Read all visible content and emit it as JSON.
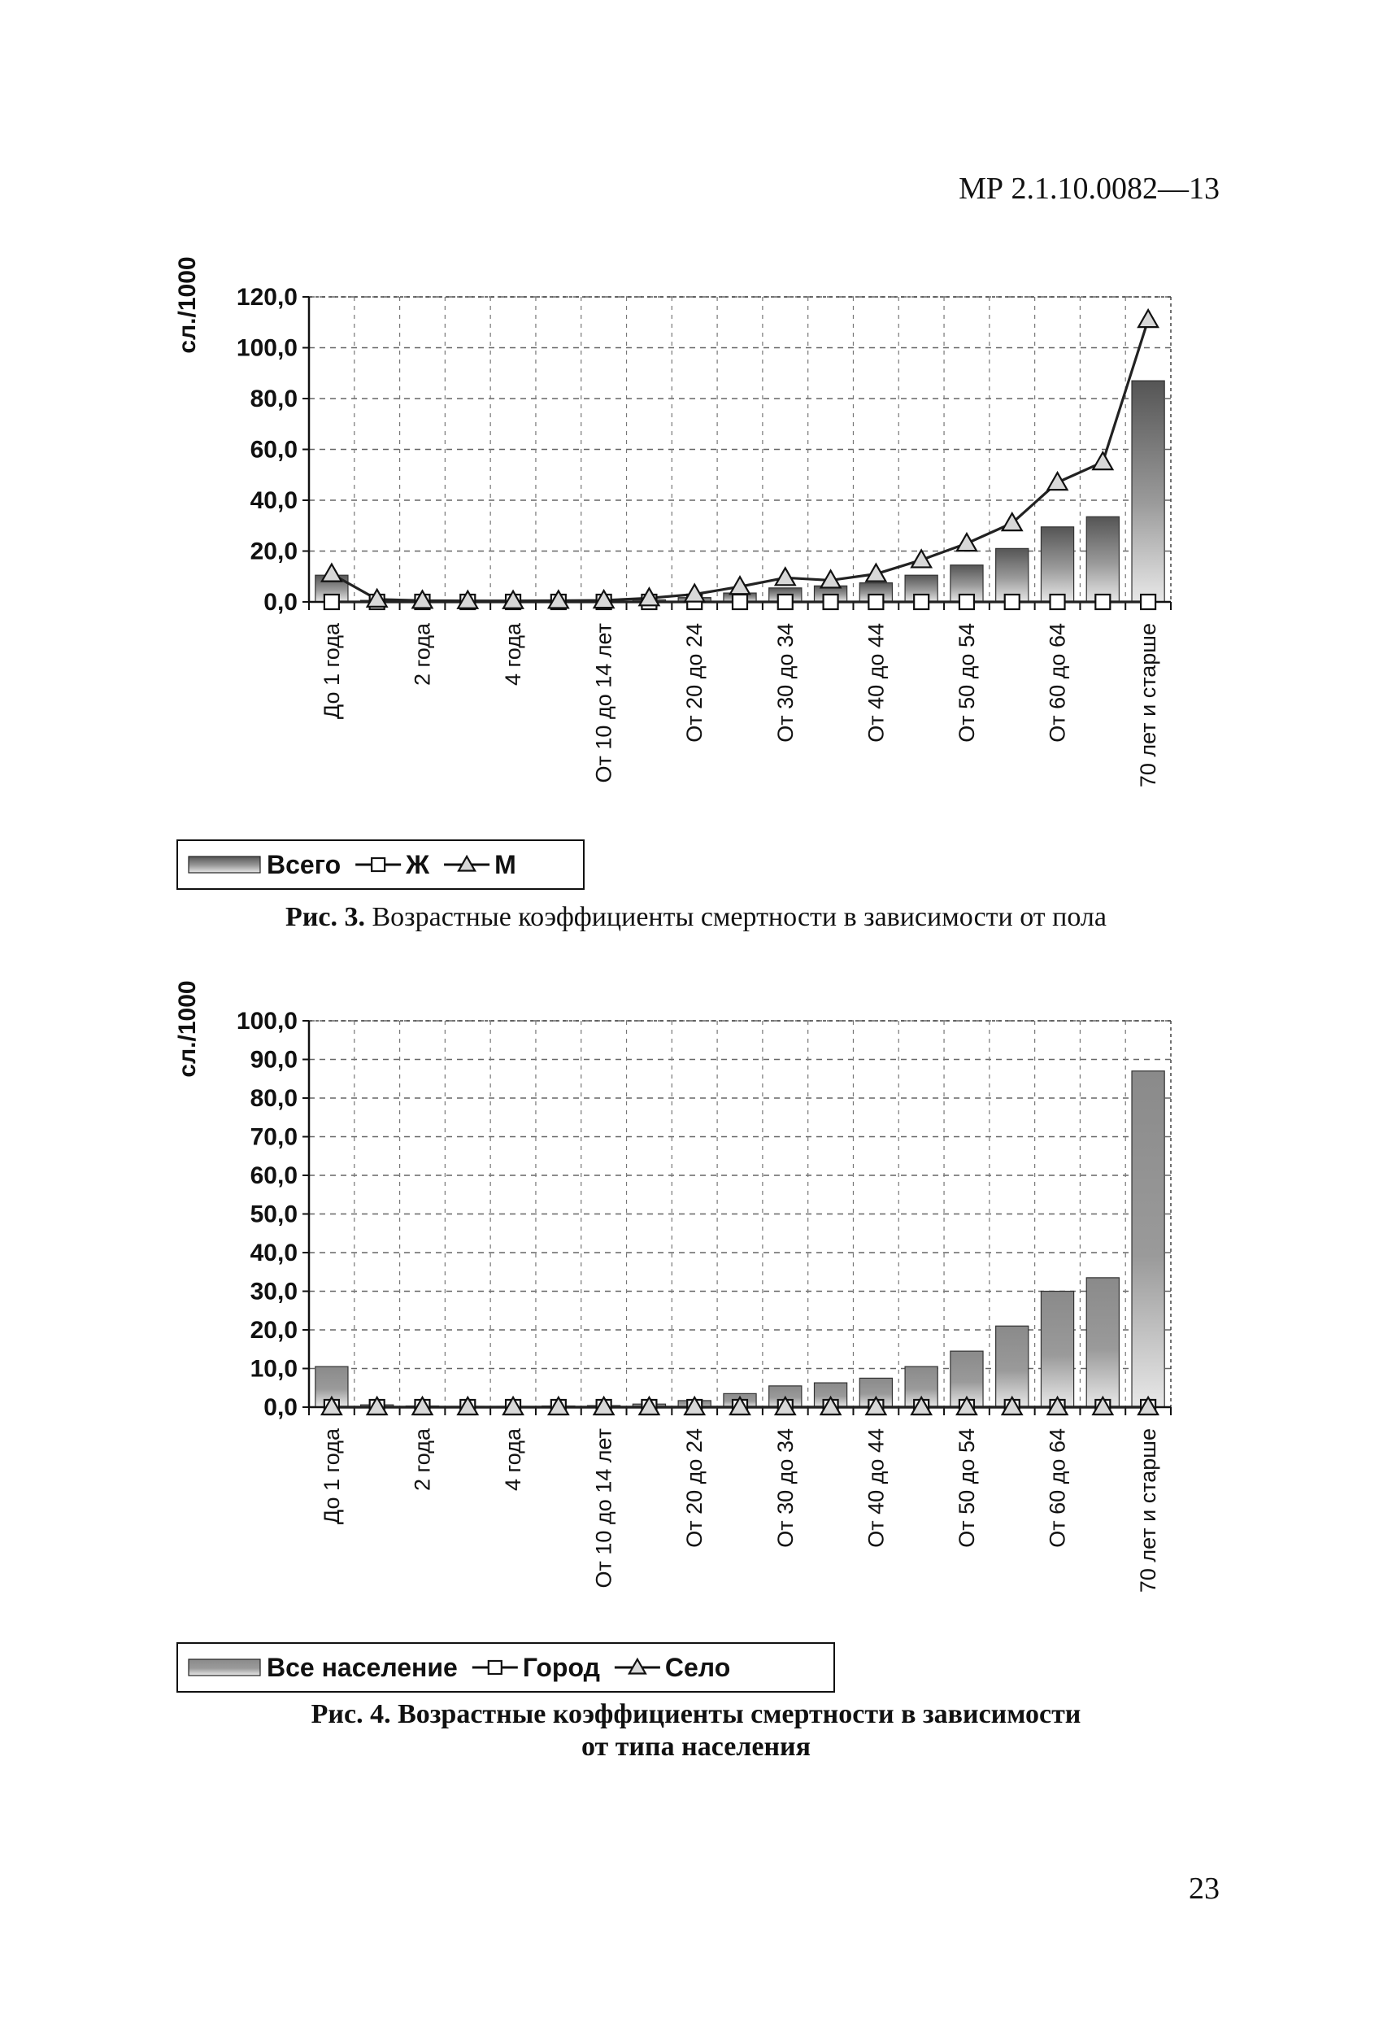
{
  "header": {
    "doc_code": "МР 2.1.10.0082—13"
  },
  "footer": {
    "page_number": "23"
  },
  "figures": [
    {
      "caption_num": "Рис. 3.",
      "caption_text": "Возрастные коэффициенты смертности в зависимости от пола",
      "caption_line2": ""
    },
    {
      "caption_num": "Рис. 4.",
      "caption_text": "Возрастные коэффициенты смертности в зависимости",
      "caption_line2": "от типа населения"
    }
  ],
  "chart_data": [
    {
      "type": "bar",
      "ylabel": "сл./1000",
      "ylim": [
        0,
        120
      ],
      "yticks": [
        "0,0",
        "20,0",
        "40,0",
        "60,0",
        "80,0",
        "100,0",
        "120,0"
      ],
      "grid": true,
      "legend_position": "bottom-left",
      "categories": [
        "До 1 года",
        "",
        "2 года",
        "",
        "4 года",
        "",
        "От 10 до 14 лет",
        "",
        "От 20 до 24",
        "",
        "От 30 до 34",
        "",
        "От 40 до 44",
        "",
        "От 50 до 54",
        "",
        "От 60 до 64",
        "",
        "70 лет и старше"
      ],
      "series": [
        {
          "name": "Всего",
          "kind": "bar",
          "color": "#555555",
          "values": [
            10.5,
            0.6,
            0.3,
            0.2,
            0.2,
            0.3,
            0.4,
            0.8,
            1.7,
            3.5,
            5.5,
            6.3,
            7.5,
            10.5,
            14.5,
            21,
            29.5,
            33.5,
            87
          ]
        },
        {
          "name": "Ж",
          "kind": "line",
          "marker": "square",
          "color": "#222222",
          "values": [
            0,
            0,
            0,
            0,
            0,
            0,
            0,
            0,
            0,
            0,
            0,
            0,
            0,
            0,
            0,
            0,
            0,
            0,
            0
          ]
        },
        {
          "name": "М",
          "kind": "line",
          "marker": "triangle",
          "color": "#222222",
          "values": [
            11,
            1,
            0.5,
            0.4,
            0.4,
            0.5,
            0.6,
            1.5,
            3,
            6,
            9.5,
            8.5,
            11,
            16.5,
            23,
            31,
            47,
            55,
            111
          ]
        }
      ]
    },
    {
      "type": "bar",
      "ylabel": "сл./1000",
      "ylim": [
        0,
        100
      ],
      "yticks": [
        "0,0",
        "10,0",
        "20,0",
        "30,0",
        "40,0",
        "50,0",
        "60,0",
        "70,0",
        "80,0",
        "90,0",
        "100,0"
      ],
      "grid": true,
      "legend_position": "bottom-left",
      "categories": [
        "До 1 года",
        "",
        "2 года",
        "",
        "4 года",
        "",
        "От 10 до 14 лет",
        "",
        "От 20 до 24",
        "",
        "От 30 до 34",
        "",
        "От 40 до 44",
        "",
        "От 50 до 54",
        "",
        "От 60 до 64",
        "",
        "70 лет и старше"
      ],
      "series": [
        {
          "name": "Все население",
          "kind": "bar",
          "color": "#8a8a8a",
          "values": [
            10.5,
            0.6,
            0.3,
            0.2,
            0.2,
            0.3,
            0.4,
            0.8,
            1.7,
            3.5,
            5.5,
            6.3,
            7.5,
            10.5,
            14.5,
            21,
            30,
            33.5,
            87
          ]
        },
        {
          "name": "Город",
          "kind": "line",
          "marker": "square",
          "color": "#222222",
          "values": [
            0,
            0,
            0,
            0,
            0,
            0,
            0,
            0,
            0,
            0,
            0,
            0,
            0,
            0,
            0,
            0,
            0,
            0,
            0
          ]
        },
        {
          "name": "Село",
          "kind": "line",
          "marker": "triangle",
          "color": "#222222",
          "values": [
            0,
            0,
            0,
            0,
            0,
            0,
            0,
            0,
            0,
            0,
            0,
            0,
            0,
            0,
            0,
            0,
            0,
            0,
            0
          ]
        }
      ]
    }
  ]
}
